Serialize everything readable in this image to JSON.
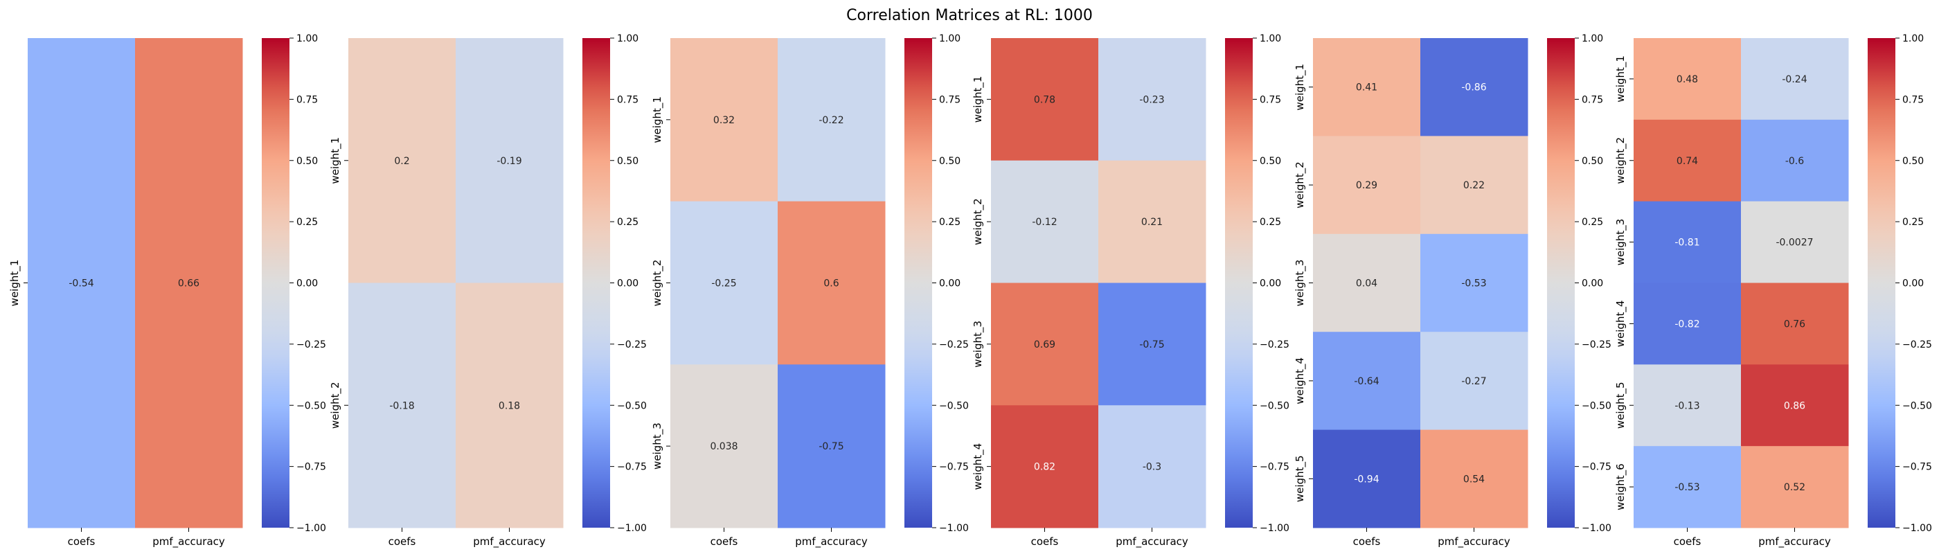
{
  "figure": {
    "title": "Correlation Matrices at RL: 1000"
  },
  "colormap": {
    "name": "coolwarm",
    "stops": [
      "#3b4cc0",
      "#6788ee",
      "#9abbff",
      "#c9d7f0",
      "#dddddd",
      "#f2cbb7",
      "#f7a889",
      "#e26952",
      "#b40426"
    ]
  },
  "chart_data": [
    {
      "type": "heatmap",
      "xlabels": [
        "coefs",
        "pmf_accuracy"
      ],
      "ylabels": [
        "weight_1"
      ],
      "values": [
        [
          -0.54,
          0.66
        ]
      ],
      "annotations": [
        [
          "-0.54",
          "0.66"
        ]
      ],
      "vmin": -1.0,
      "vmax": 1.0,
      "colorbar_ticks": [
        "1.00",
        "0.75",
        "0.50",
        "0.25",
        "0.00",
        "−0.25",
        "−0.50",
        "−0.75",
        "−1.00"
      ]
    },
    {
      "type": "heatmap",
      "xlabels": [
        "coefs",
        "pmf_accuracy"
      ],
      "ylabels": [
        "weight_1",
        "weight_2"
      ],
      "values": [
        [
          0.2,
          -0.19
        ],
        [
          -0.18,
          0.18
        ]
      ],
      "annotations": [
        [
          "0.2",
          "-0.19"
        ],
        [
          "-0.18",
          "0.18"
        ]
      ],
      "vmin": -1.0,
      "vmax": 1.0,
      "colorbar_ticks": [
        "1.00",
        "0.75",
        "0.50",
        "0.25",
        "0.00",
        "−0.25",
        "−0.50",
        "−0.75",
        "−1.00"
      ]
    },
    {
      "type": "heatmap",
      "xlabels": [
        "coefs",
        "pmf_accuracy"
      ],
      "ylabels": [
        "weight_1",
        "weight_2",
        "weight_3"
      ],
      "values": [
        [
          0.32,
          -0.22
        ],
        [
          -0.25,
          0.6
        ],
        [
          0.038,
          -0.75
        ]
      ],
      "annotations": [
        [
          "0.32",
          "-0.22"
        ],
        [
          "-0.25",
          "0.6"
        ],
        [
          "0.038",
          "-0.75"
        ]
      ],
      "vmin": -1.0,
      "vmax": 1.0,
      "colorbar_ticks": [
        "1.00",
        "0.75",
        "0.50",
        "0.25",
        "0.00",
        "−0.25",
        "−0.50",
        "−0.75",
        "−1.00"
      ]
    },
    {
      "type": "heatmap",
      "xlabels": [
        "coefs",
        "pmf_accuracy"
      ],
      "ylabels": [
        "weight_1",
        "weight_2",
        "weight_3",
        "weight_4"
      ],
      "values": [
        [
          0.78,
          -0.23
        ],
        [
          -0.12,
          0.21
        ],
        [
          0.69,
          -0.75
        ],
        [
          0.82,
          -0.3
        ]
      ],
      "annotations": [
        [
          "0.78",
          "-0.23"
        ],
        [
          "-0.12",
          "0.21"
        ],
        [
          "0.69",
          "-0.75"
        ],
        [
          "0.82",
          "-0.3"
        ]
      ],
      "vmin": -1.0,
      "vmax": 1.0,
      "colorbar_ticks": [
        "1.00",
        "0.75",
        "0.50",
        "0.25",
        "0.00",
        "−0.25",
        "−0.50",
        "−0.75",
        "−1.00"
      ]
    },
    {
      "type": "heatmap",
      "xlabels": [
        "coefs",
        "pmf_accuracy"
      ],
      "ylabels": [
        "weight_1",
        "weight_2",
        "weight_3",
        "weight_4",
        "weight_5"
      ],
      "values": [
        [
          0.41,
          -0.86
        ],
        [
          0.29,
          0.22
        ],
        [
          0.04,
          -0.53
        ],
        [
          -0.64,
          -0.27
        ],
        [
          -0.94,
          0.54
        ]
      ],
      "annotations": [
        [
          "0.41",
          "-0.86"
        ],
        [
          "0.29",
          "0.22"
        ],
        [
          "0.04",
          "-0.53"
        ],
        [
          "-0.64",
          "-0.27"
        ],
        [
          "-0.94",
          "0.54"
        ]
      ],
      "vmin": -1.0,
      "vmax": 1.0,
      "colorbar_ticks": [
        "1.00",
        "0.75",
        "0.50",
        "0.25",
        "0.00",
        "−0.25",
        "−0.50",
        "−0.75",
        "−1.00"
      ]
    },
    {
      "type": "heatmap",
      "xlabels": [
        "coefs",
        "pmf_accuracy"
      ],
      "ylabels": [
        "weight_1",
        "weight_2",
        "weight_3",
        "weight_4",
        "weight_5",
        "weight_6"
      ],
      "values": [
        [
          0.48,
          -0.24
        ],
        [
          0.74,
          -0.6
        ],
        [
          -0.81,
          -0.0027
        ],
        [
          -0.82,
          0.76
        ],
        [
          -0.13,
          0.86
        ],
        [
          -0.53,
          0.52
        ]
      ],
      "annotations": [
        [
          "0.48",
          "-0.24"
        ],
        [
          "0.74",
          "-0.6"
        ],
        [
          "-0.81",
          "-0.0027"
        ],
        [
          "-0.82",
          "0.76"
        ],
        [
          "-0.13",
          "0.86"
        ],
        [
          "-0.53",
          "0.52"
        ]
      ],
      "vmin": -1.0,
      "vmax": 1.0,
      "colorbar_ticks": [
        "1.00",
        "0.75",
        "0.50",
        "0.25",
        "0.00",
        "−0.25",
        "−0.50",
        "−0.75",
        "−1.00"
      ]
    }
  ]
}
